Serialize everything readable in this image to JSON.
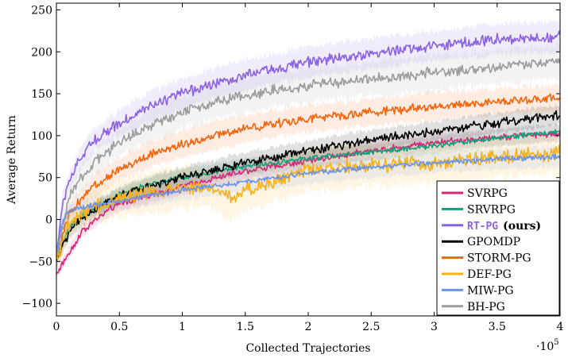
{
  "chart_data": {
    "type": "line",
    "title": "",
    "xlabel": "Collected Trajectories",
    "ylabel": "Average Return",
    "x_multiplier_label": "·10",
    "x_multiplier_exp": "5",
    "xlim": [
      0,
      4
    ],
    "ylim": [
      -115,
      258
    ],
    "xticks": [
      0,
      0.5,
      1,
      1.5,
      2,
      2.5,
      3,
      3.5,
      4
    ],
    "xtick_labels": [
      "0",
      "0.5",
      "1",
      "1.5",
      "2",
      "2.5",
      "3",
      "3.5",
      "4"
    ],
    "yticks": [
      -100,
      -50,
      0,
      50,
      100,
      150,
      200,
      250
    ],
    "ytick_labels": [
      "−100",
      "−50",
      "0",
      "50",
      "100",
      "150",
      "200",
      "250"
    ],
    "grid": false,
    "legend_position": "bottom-right",
    "series": [
      {
        "name": "SVRPG",
        "color": "#d6287a",
        "noise": 3,
        "band": 10,
        "x": [
          0,
          0.1,
          0.2,
          0.3,
          0.4,
          0.5,
          0.7,
          1.0,
          1.5,
          2.0,
          2.5,
          3.0,
          3.5,
          4.0
        ],
        "y": [
          -65,
          -40,
          -15,
          -2,
          10,
          18,
          28,
          40,
          58,
          70,
          82,
          92,
          98,
          103
        ]
      },
      {
        "name": "SRVRPG",
        "color": "#10a07a",
        "noise": 2.5,
        "band": 10,
        "x": [
          0,
          0.1,
          0.2,
          0.3,
          0.4,
          0.5,
          0.7,
          1.0,
          1.5,
          2.0,
          2.5,
          3.0,
          3.5,
          4.0
        ],
        "y": [
          -45,
          -10,
          5,
          12,
          20,
          30,
          40,
          50,
          63,
          73,
          80,
          88,
          97,
          105
        ]
      },
      {
        "name": "RT-PG",
        "name_suffix": "(ours)",
        "color": "#8a62e6",
        "noise": 5,
        "band": 18,
        "x": [
          0,
          0.05,
          0.1,
          0.2,
          0.3,
          0.5,
          0.75,
          1.0,
          1.25,
          1.5,
          1.75,
          2.0,
          2.5,
          3.0,
          3.5,
          4.0
        ],
        "y": [
          -45,
          20,
          45,
          75,
          95,
          115,
          135,
          150,
          162,
          172,
          180,
          188,
          198,
          207,
          215,
          218
        ]
      },
      {
        "name": "GPOMDP",
        "color": "#000000",
        "noise": 4,
        "band": 12,
        "x": [
          0,
          0.1,
          0.2,
          0.3,
          0.4,
          0.5,
          0.7,
          1.0,
          1.5,
          2.0,
          2.5,
          3.0,
          3.5,
          4.0
        ],
        "y": [
          -50,
          -15,
          0,
          12,
          20,
          28,
          38,
          50,
          68,
          82,
          95,
          105,
          115,
          125
        ]
      },
      {
        "name": "STORM-PG",
        "color": "#f5650e",
        "noise": 4,
        "band": 16,
        "x": [
          0,
          0.1,
          0.2,
          0.3,
          0.5,
          0.75,
          1.0,
          1.25,
          1.5,
          1.75,
          2.0,
          2.5,
          3.0,
          3.5,
          4.0
        ],
        "y": [
          -45,
          5,
          25,
          40,
          60,
          78,
          90,
          100,
          108,
          115,
          120,
          128,
          135,
          140,
          145
        ]
      },
      {
        "name": "DEF-PG",
        "color": "#f6b21c",
        "noise": 7,
        "band": 25,
        "x": [
          0,
          0.1,
          0.2,
          0.3,
          0.5,
          0.75,
          1.0,
          1.25,
          1.4,
          1.5,
          1.75,
          2.0,
          2.5,
          3.0,
          3.5,
          4.0
        ],
        "y": [
          -45,
          -8,
          5,
          15,
          25,
          32,
          38,
          38,
          25,
          35,
          48,
          60,
          65,
          68,
          75,
          80
        ]
      },
      {
        "name": "MIW-PG",
        "color": "#6a93ea",
        "noise": 2.5,
        "band": 12,
        "x": [
          0,
          0.05,
          0.1,
          0.2,
          0.5,
          1.0,
          1.5,
          2.0,
          2.5,
          3.0,
          3.5,
          4.0
        ],
        "y": [
          -40,
          0,
          10,
          15,
          22,
          35,
          45,
          55,
          62,
          68,
          72,
          75
        ]
      },
      {
        "name": "BH-PG",
        "color": "#9c9c9c",
        "noise": 5,
        "band": 20,
        "x": [
          0,
          0.1,
          0.2,
          0.3,
          0.5,
          0.75,
          1.0,
          1.25,
          1.5,
          1.75,
          2.0,
          2.5,
          3.0,
          3.5,
          4.0
        ],
        "y": [
          -45,
          25,
          50,
          68,
          92,
          112,
          128,
          140,
          148,
          155,
          160,
          168,
          175,
          182,
          188
        ]
      }
    ]
  }
}
